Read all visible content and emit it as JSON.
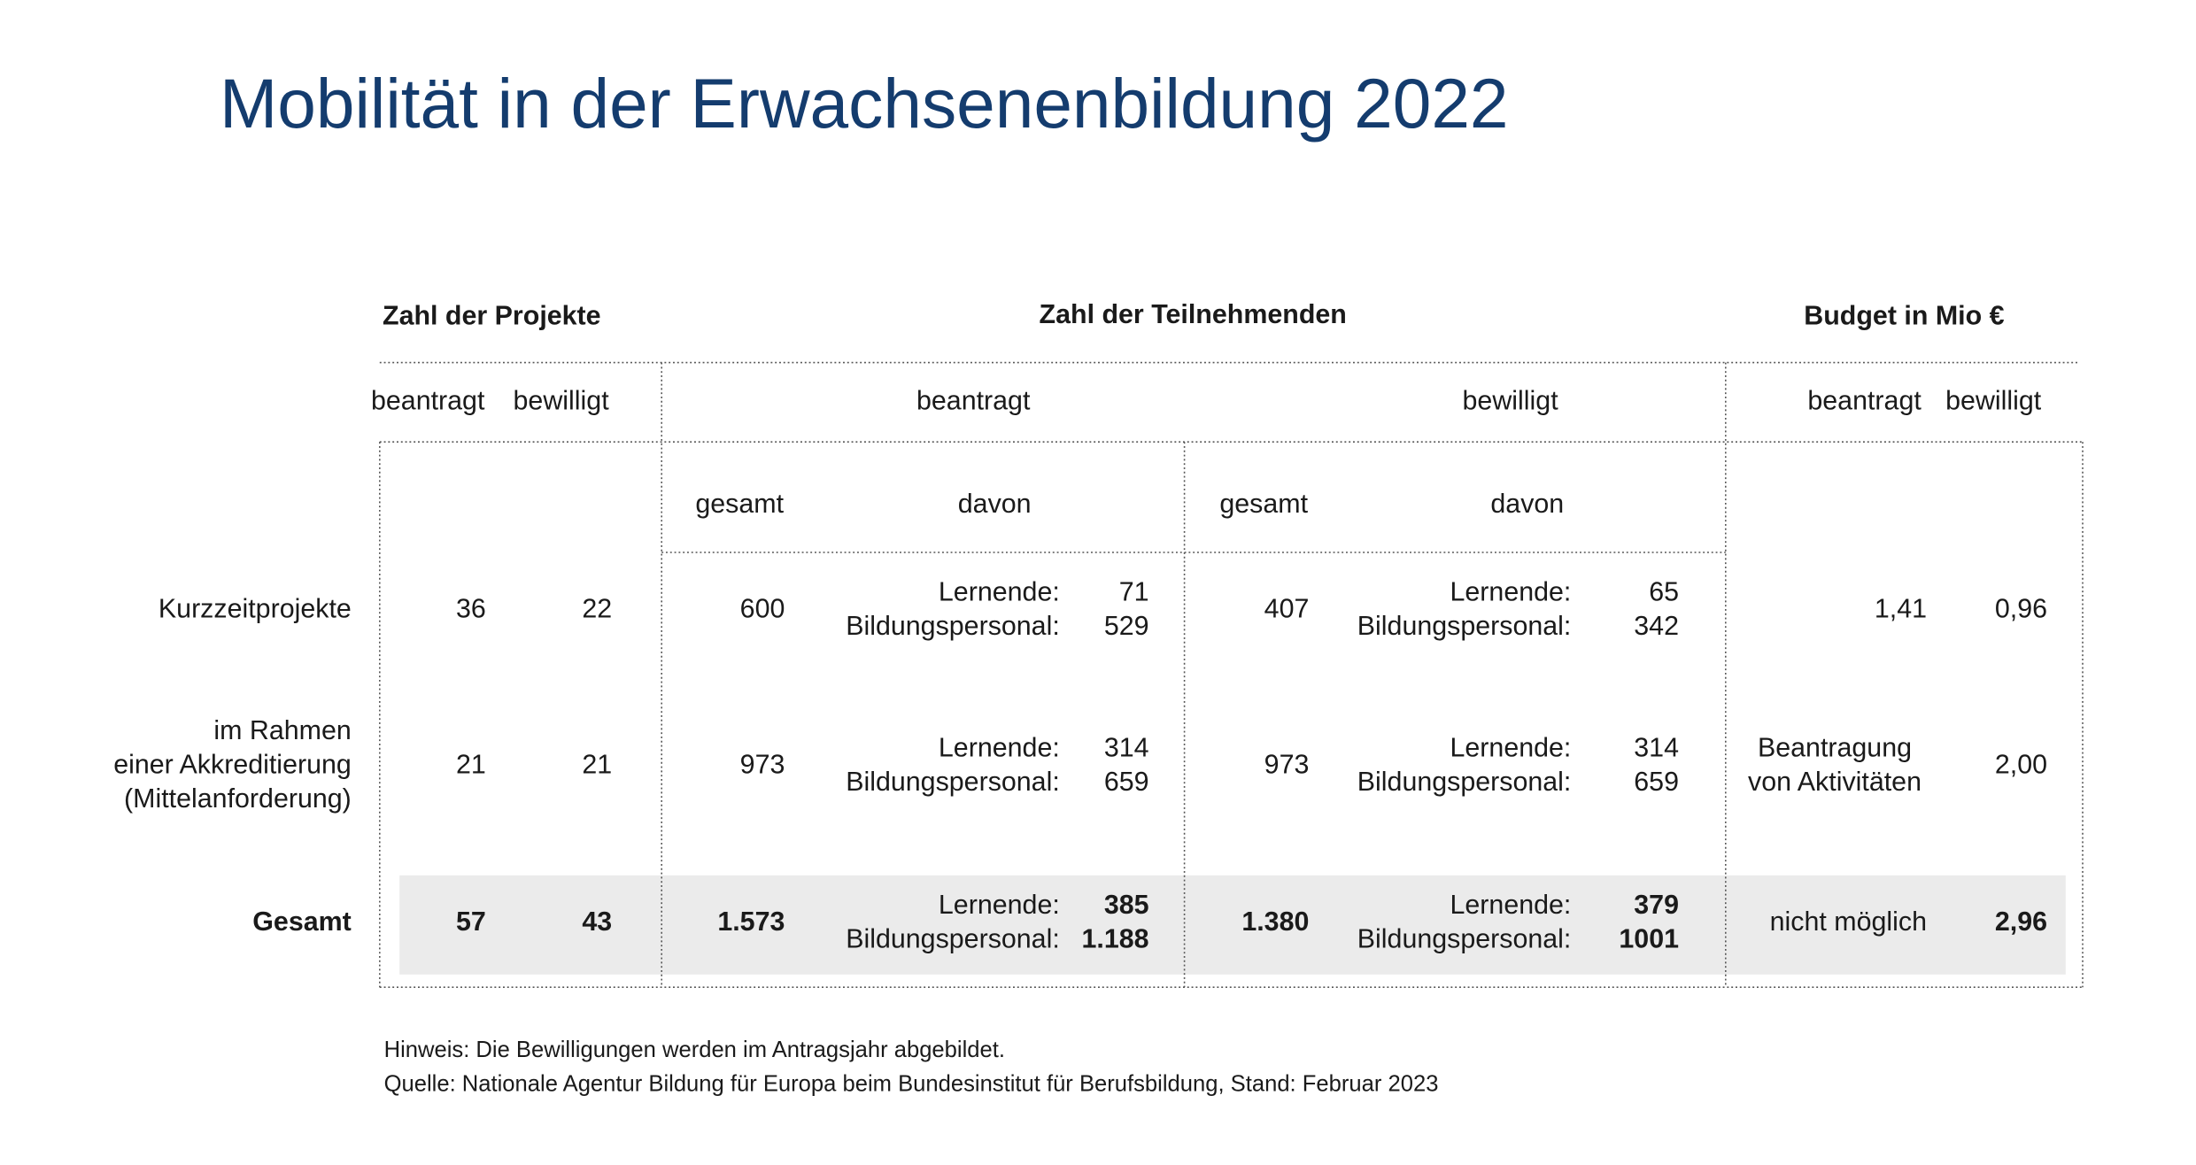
{
  "title": "Mobilität in der Erwachsenenbildung 2022",
  "table": {
    "group_headers": [
      "Zahl der Projekte",
      "Zahl der Teilnehmenden",
      "Budget in Mio €"
    ],
    "sub_headers": [
      "beantragt",
      "bewilligt",
      "beantragt",
      "bewilligt",
      "beantragt",
      "bewilligt"
    ],
    "detail_headers": [
      "gesamt",
      "davon",
      "gesamt",
      "davon"
    ],
    "learners_label": "Lernende:",
    "staff_label": "Bildungspersonal:",
    "rows": [
      {
        "label": [
          "Kurzzeitprojekte"
        ],
        "projects_applied": "36",
        "projects_approved": "22",
        "applied_total": "600",
        "applied_learners": "71",
        "applied_staff": "529",
        "approved_total": "407",
        "approved_learners": "65",
        "approved_staff": "342",
        "budget_applied": [
          "1,41"
        ],
        "budget_approved": "0,96"
      },
      {
        "label": [
          "im Rahmen",
          "einer Akkreditierung",
          "(Mittelanforderung)"
        ],
        "projects_applied": "21",
        "projects_approved": "21",
        "applied_total": "973",
        "applied_learners": "314",
        "applied_staff": "659",
        "approved_total": "973",
        "approved_learners": "314",
        "approved_staff": "659",
        "budget_applied": [
          "Beantragung",
          "von Aktivitäten"
        ],
        "budget_approved": "2,00"
      },
      {
        "label": [
          "Gesamt"
        ],
        "projects_applied": "57",
        "projects_approved": "43",
        "applied_total": "1.573",
        "applied_learners": "385",
        "applied_staff": "1.188",
        "approved_total": "1.380",
        "approved_learners": "379",
        "approved_staff": "1001",
        "budget_applied": [
          "nicht möglich"
        ],
        "budget_approved": "2,96"
      }
    ]
  },
  "notes": [
    "Hinweis: Die Bewilligungen werden im Antragsjahr abgebildet.",
    "Quelle: Nationale Agentur Bildung für Europa beim Bundesinstitut für Berufsbildung, Stand: Februar 2023"
  ]
}
